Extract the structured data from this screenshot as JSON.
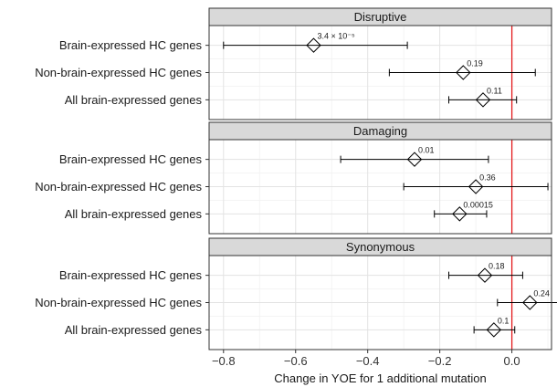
{
  "chart_data": {
    "type": "scatter",
    "subtype": "forest-plot-faceted",
    "xlabel": "Change in YOE for 1 additional mutation",
    "xlim": [
      -0.84,
      0.11
    ],
    "xticks": [
      -0.8,
      -0.6,
      -0.4,
      -0.2,
      0.0
    ],
    "xtick_labels": [
      "−0.8",
      "−0.6",
      "−0.4",
      "−0.2",
      "0.0"
    ],
    "reference_line": {
      "x": 0,
      "color": "#e41a1c"
    },
    "grid": true,
    "marker": "diamond",
    "panels": [
      {
        "title": "Disruptive",
        "rows": [
          {
            "label": "Brain-expressed HC genes",
            "estimate": -0.55,
            "ci": [
              -0.8,
              -0.29
            ],
            "p_label": "3.4 × 10⁻⁵"
          },
          {
            "label": "Non-brain-expressed HC genes",
            "estimate": -0.135,
            "ci": [
              -0.34,
              0.065
            ],
            "p_label": "0.19"
          },
          {
            "label": "All brain-expressed genes",
            "estimate": -0.08,
            "ci": [
              -0.175,
              0.013
            ],
            "p_label": "0.11"
          }
        ]
      },
      {
        "title": "Damaging",
        "rows": [
          {
            "label": "Brain-expressed HC genes",
            "estimate": -0.27,
            "ci": [
              -0.475,
              -0.065
            ],
            "p_label": "0.01"
          },
          {
            "label": "Non-brain-expressed HC genes",
            "estimate": -0.1,
            "ci": [
              -0.3,
              0.1
            ],
            "p_label": "0.36"
          },
          {
            "label": "All brain-expressed genes",
            "estimate": -0.145,
            "ci": [
              -0.215,
              -0.07
            ],
            "p_label": "0.00015"
          }
        ]
      },
      {
        "title": "Synonymous",
        "rows": [
          {
            "label": "Brain-expressed HC genes",
            "estimate": -0.075,
            "ci": [
              -0.175,
              0.03
            ],
            "p_label": "0.18"
          },
          {
            "label": "Non-brain-expressed HC genes",
            "estimate": 0.05,
            "ci": [
              -0.04,
              0.14
            ],
            "p_label": "0.24"
          },
          {
            "label": "All brain-expressed genes",
            "estimate": -0.05,
            "ci": [
              -0.105,
              0.008
            ],
            "p_label": "0.1"
          }
        ]
      }
    ]
  }
}
